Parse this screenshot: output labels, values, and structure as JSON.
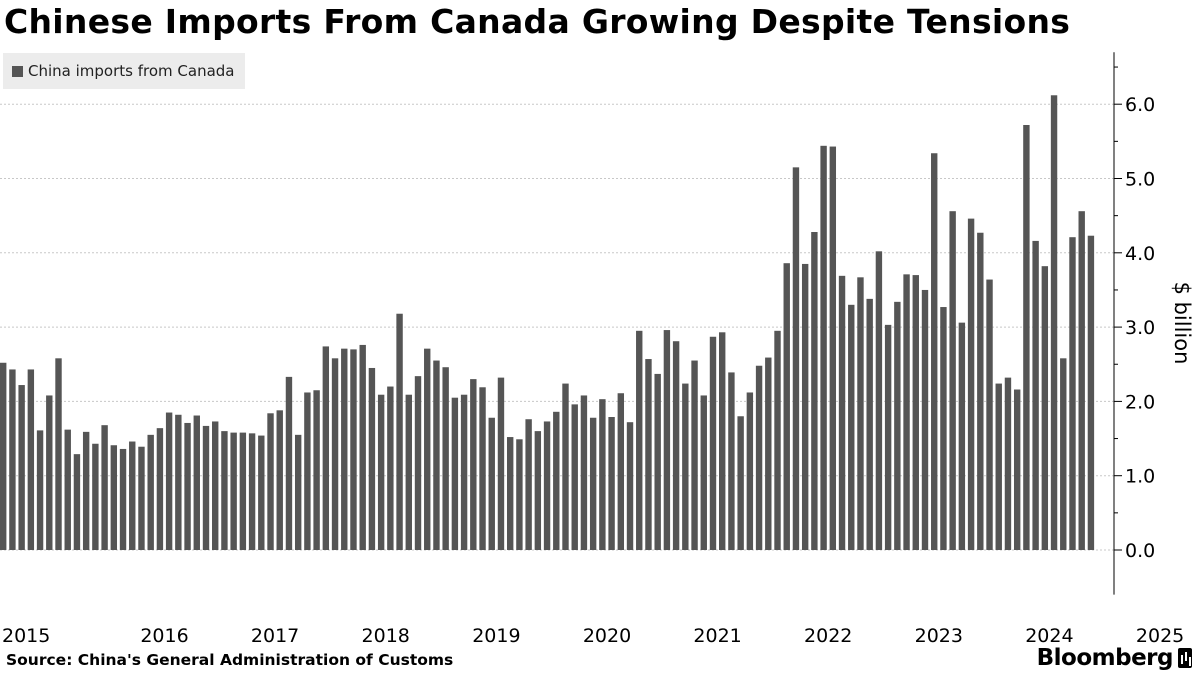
{
  "title": "Chinese Imports From Canada Growing Despite Tensions",
  "source": "Source: China's General Administration of Customs",
  "brand": "Bloomberg",
  "colors": {
    "bar": "#555555",
    "grid": "#c8c8c8",
    "axis": "#000000",
    "legend_bg": "#ececec"
  },
  "chart_data": {
    "type": "bar",
    "title": "Chinese Imports From Canada Growing Despite Tensions",
    "ylabel": "$ billion",
    "xlabel": "",
    "ylim": [
      -0.6,
      6.7
    ],
    "yticks": [
      0.0,
      1.0,
      2.0,
      3.0,
      4.0,
      5.0,
      6.0
    ],
    "ytick_labels": [
      "0.0",
      "1.0",
      "2.0",
      "3.0",
      "4.0",
      "5.0",
      "6.0"
    ],
    "grid": true,
    "legend_placement": "top-left",
    "year_labels": [
      "2015",
      "2016",
      "2017",
      "2018",
      "2019",
      "2020",
      "2021",
      "2022",
      "2023",
      "2024",
      "2025"
    ],
    "start": "2015-01",
    "frequency": "monthly",
    "series": [
      {
        "name": "China imports from Canada",
        "values": [
          2.52,
          2.43,
          2.22,
          2.43,
          1.61,
          2.08,
          2.58,
          1.62,
          1.29,
          1.59,
          1.43,
          1.68,
          1.41,
          1.36,
          1.46,
          1.39,
          1.55,
          1.64,
          1.85,
          1.82,
          1.71,
          1.81,
          1.67,
          1.73,
          1.6,
          1.58,
          1.58,
          1.57,
          1.54,
          1.84,
          1.88,
          2.33,
          1.55,
          2.12,
          2.15,
          2.74,
          2.58,
          2.71,
          2.7,
          2.76,
          2.45,
          2.09,
          2.2,
          3.18,
          2.09,
          2.34,
          2.71,
          2.55,
          2.46,
          2.05,
          2.09,
          2.3,
          2.19,
          1.78,
          2.32,
          1.52,
          1.49,
          1.76,
          1.6,
          1.73,
          1.86,
          2.24,
          1.96,
          2.08,
          1.78,
          2.03,
          1.79,
          2.11,
          1.72,
          2.95,
          2.57,
          2.37,
          2.96,
          2.81,
          2.24,
          2.55,
          2.08,
          2.87,
          2.93,
          2.39,
          1.8,
          2.12,
          2.48,
          2.59,
          2.95,
          3.86,
          5.15,
          3.85,
          4.28,
          5.44,
          5.43,
          3.69,
          3.3,
          3.67,
          3.38,
          4.02,
          3.03,
          3.34,
          3.71,
          3.7,
          3.5,
          5.34,
          3.27,
          4.56,
          3.06,
          4.46,
          4.27,
          3.64,
          2.24,
          2.32,
          2.16,
          5.72,
          4.16,
          3.82,
          6.12,
          2.58,
          4.21,
          4.56,
          4.23
        ]
      }
    ]
  }
}
